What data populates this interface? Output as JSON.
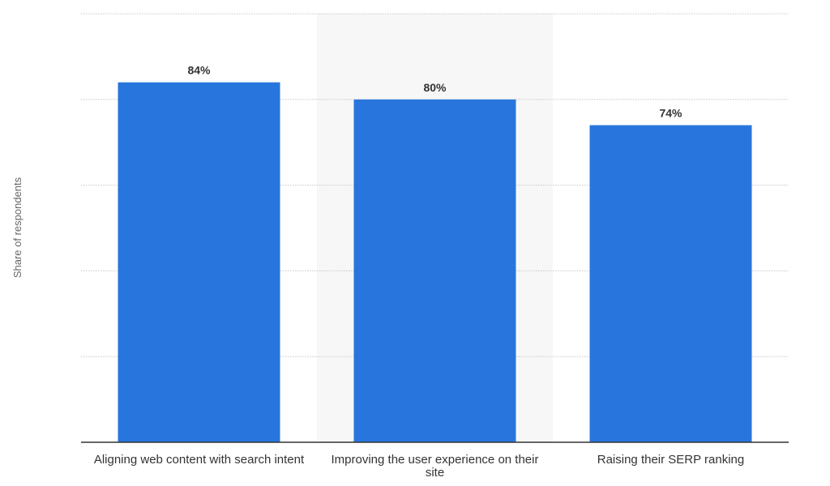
{
  "chart_data": {
    "type": "bar",
    "categories": [
      "Aligning web content with search intent",
      "Improving the user experience on their site",
      "Raising their SERP ranking"
    ],
    "values": [
      84,
      80,
      74
    ],
    "value_labels": [
      "84%",
      "80%",
      "74%"
    ],
    "ylabel": "Share of respondents",
    "ylim": [
      0,
      100
    ],
    "grid": true,
    "highlighted_category_index": 1,
    "bar_color": "#2876dd",
    "highlight_band_color": "#f7f7f7",
    "grid_color": "#c8c8c8"
  }
}
